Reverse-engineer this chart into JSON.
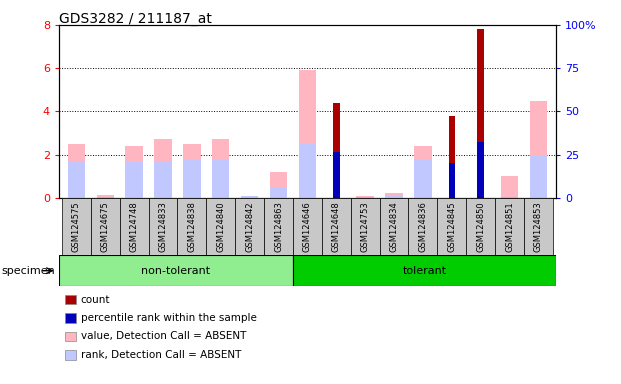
{
  "title": "GDS3282 / 211187_at",
  "samples": [
    "GSM124575",
    "GSM124675",
    "GSM124748",
    "GSM124833",
    "GSM124838",
    "GSM124840",
    "GSM124842",
    "GSM124863",
    "GSM124646",
    "GSM124648",
    "GSM124753",
    "GSM124834",
    "GSM124836",
    "GSM124845",
    "GSM124850",
    "GSM124851",
    "GSM124853"
  ],
  "non_tolerant_count": 8,
  "groups": [
    {
      "name": "non-tolerant",
      "color": "#90EE90"
    },
    {
      "name": "tolerant",
      "color": "#00CC00"
    }
  ],
  "count": [
    0,
    0,
    0,
    0,
    0,
    0,
    0,
    0,
    0,
    4.4,
    0,
    0,
    0,
    3.8,
    7.8,
    0,
    0
  ],
  "percentile": [
    0,
    0,
    0,
    0,
    0,
    0,
    0,
    0,
    0,
    2.1,
    0,
    0,
    0,
    1.6,
    2.6,
    0,
    0
  ],
  "value_absent": [
    2.5,
    0.15,
    2.4,
    2.7,
    2.5,
    2.7,
    0,
    1.2,
    5.9,
    0,
    0.08,
    0.2,
    2.4,
    0,
    0,
    1.0,
    4.5
  ],
  "rank_absent": [
    1.7,
    0,
    1.65,
    1.7,
    1.8,
    1.8,
    0.08,
    0.5,
    2.5,
    0,
    0,
    0.15,
    1.75,
    0,
    0,
    0,
    2.0
  ],
  "ylim": [
    0,
    8
  ],
  "yticks": [
    0,
    2,
    4,
    6,
    8
  ],
  "y2lim": [
    0,
    100
  ],
  "y2ticks": [
    0,
    25,
    50,
    75,
    100
  ],
  "color_count": "#AA0000",
  "color_percentile": "#0000BB",
  "color_value_absent": "#FFB6C1",
  "color_rank_absent": "#C0C8FF",
  "bg_plot": "#FFFFFF",
  "legend_items": [
    {
      "label": "count",
      "color": "#AA0000"
    },
    {
      "label": "percentile rank within the sample",
      "color": "#0000BB"
    },
    {
      "label": "value, Detection Call = ABSENT",
      "color": "#FFB6C1"
    },
    {
      "label": "rank, Detection Call = ABSENT",
      "color": "#C0C8FF"
    }
  ]
}
